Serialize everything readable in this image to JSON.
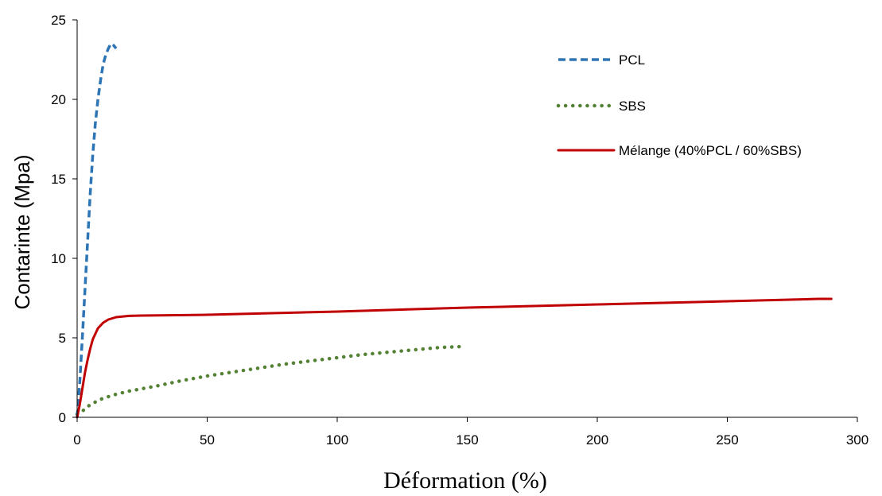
{
  "chart_data": {
    "type": "line",
    "xlabel": "Déformation (%)",
    "ylabel": "Contarinte (Mpa)",
    "xlim": [
      0,
      300
    ],
    "ylim": [
      0,
      25
    ],
    "x_ticks": [
      0,
      50,
      100,
      150,
      200,
      250,
      300
    ],
    "y_ticks": [
      0,
      5,
      10,
      15,
      20,
      25
    ],
    "grid": false,
    "legend_position": "top-right",
    "series": [
      {
        "name": "PCL",
        "color": "#2e75b6",
        "line_style": "dashed",
        "x": [
          0,
          1,
          2,
          3,
          4,
          5,
          6,
          7,
          8,
          9,
          10,
          11,
          12,
          13,
          14,
          15
        ],
        "y": [
          0,
          2.2,
          5.0,
          8.0,
          11.0,
          14.0,
          16.5,
          18.5,
          20.0,
          21.2,
          22.2,
          22.8,
          23.2,
          23.5,
          23.4,
          23.2
        ]
      },
      {
        "name": "SBS",
        "color": "#548235",
        "line_style": "dotted",
        "x": [
          0,
          3,
          5,
          10,
          15,
          20,
          30,
          40,
          50,
          60,
          70,
          80,
          90,
          100,
          110,
          120,
          130,
          140,
          148
        ],
        "y": [
          0.2,
          0.5,
          0.8,
          1.2,
          1.45,
          1.65,
          1.95,
          2.3,
          2.6,
          2.85,
          3.1,
          3.35,
          3.55,
          3.75,
          3.95,
          4.1,
          4.25,
          4.4,
          4.45
        ]
      },
      {
        "name": "Mélange (40%PCL / 60%SBS)",
        "color": "#c00000",
        "line_style": "solid",
        "x": [
          0,
          1,
          2,
          3,
          4,
          5,
          6,
          8,
          10,
          12,
          15,
          20,
          25,
          50,
          100,
          150,
          200,
          250,
          285,
          290
        ],
        "y": [
          0,
          0.8,
          1.8,
          2.8,
          3.6,
          4.3,
          4.9,
          5.6,
          5.95,
          6.15,
          6.3,
          6.38,
          6.4,
          6.45,
          6.65,
          6.9,
          7.1,
          7.3,
          7.45,
          7.45
        ]
      }
    ]
  }
}
